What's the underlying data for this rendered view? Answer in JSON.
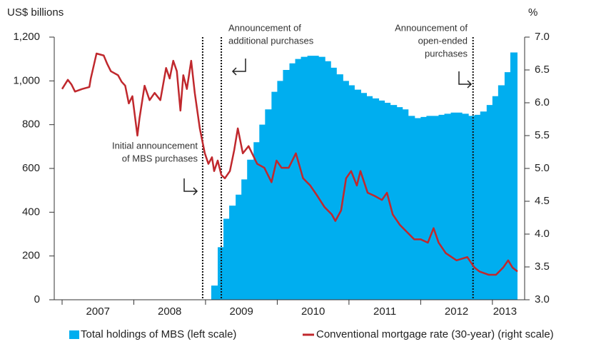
{
  "chart_data": {
    "type": "area-line",
    "y_label": "US$ billions",
    "y2_label": "%",
    "xlim": [
      2007,
      2013.35
    ],
    "xticks": [
      2007,
      2008,
      2009,
      2010,
      2011,
      2012,
      2013
    ],
    "ylim": [
      0,
      1200
    ],
    "yticks": [
      0,
      200,
      400,
      600,
      800,
      {
        "value": 1000,
        "label": "1,000"
      },
      {
        "value": 1200,
        "label": "1,200"
      }
    ],
    "y2lim": [
      3.0,
      7.0
    ],
    "y2ticks": [
      {
        "value": 3.0,
        "label": "3.0"
      },
      {
        "value": 3.5,
        "label": "3.5"
      },
      {
        "value": 4.0,
        "label": "4.0"
      },
      {
        "value": 4.5,
        "label": "4.5"
      },
      {
        "value": 5.0,
        "label": "5.0"
      },
      {
        "value": 5.5,
        "label": "5.5"
      },
      {
        "value": 6.0,
        "label": "6.0"
      },
      {
        "value": 6.5,
        "label": "6.5"
      },
      {
        "value": 7.0,
        "label": "7.0"
      }
    ],
    "legend": "bottom",
    "series": [
      {
        "name": "Total holdings of MBS (left scale)",
        "color": "#00aeef",
        "kind": "area",
        "x": [
          2008.83,
          2008.92,
          2009.0,
          2009.08,
          2009.17,
          2009.25,
          2009.33,
          2009.42,
          2009.5,
          2009.58,
          2009.67,
          2009.75,
          2009.83,
          2009.92,
          2010.0,
          2010.08,
          2010.17,
          2010.25,
          2010.33,
          2010.42,
          2010.5,
          2010.58,
          2010.67,
          2010.75,
          2010.83,
          2010.92,
          2011.0,
          2011.08,
          2011.17,
          2011.25,
          2011.33,
          2011.42,
          2011.5,
          2011.58,
          2011.67,
          2011.75,
          2011.83,
          2011.92,
          2012.0,
          2012.08,
          2012.17,
          2012.25,
          2012.33,
          2012.42,
          2012.5,
          2012.58,
          2012.67,
          2012.75,
          2012.83,
          2012.92,
          2013.0,
          2013.08,
          2013.17,
          2013.25
        ],
        "values": [
          0,
          0,
          0,
          65,
          240,
          370,
          430,
          480,
          550,
          640,
          720,
          800,
          870,
          950,
          1000,
          1050,
          1080,
          1100,
          1110,
          1115,
          1115,
          1110,
          1090,
          1060,
          1030,
          1000,
          980,
          960,
          945,
          930,
          920,
          910,
          900,
          890,
          880,
          870,
          840,
          830,
          835,
          840,
          840,
          845,
          850,
          855,
          855,
          850,
          840,
          845,
          860,
          890,
          930,
          980,
          1040,
          1130
        ]
      },
      {
        "name": "Conventional mortgage rate (30-year) (right scale)",
        "color": "#c0282d",
        "kind": "line",
        "axis": "y2",
        "x": [
          2007.0,
          2007.08,
          2007.13,
          2007.18,
          2007.28,
          2007.38,
          2007.4,
          2007.48,
          2007.58,
          2007.63,
          2007.68,
          2007.78,
          2007.83,
          2007.88,
          2007.93,
          2007.98,
          2008.05,
          2008.08,
          2008.15,
          2008.22,
          2008.29,
          2008.37,
          2008.45,
          2008.5,
          2008.55,
          2008.6,
          2008.65,
          2008.69,
          2008.74,
          2008.8,
          2008.85,
          2008.92,
          2008.99,
          2009.04,
          2009.09,
          2009.12,
          2009.17,
          2009.22,
          2009.27,
          2009.34,
          2009.4,
          2009.45,
          2009.52,
          2009.6,
          2009.72,
          2009.82,
          2009.92,
          2009.99,
          2010.06,
          2010.16,
          2010.26,
          2010.36,
          2010.46,
          2010.56,
          2010.66,
          2010.76,
          2010.81,
          2010.89,
          2010.96,
          2011.03,
          2011.11,
          2011.16,
          2011.26,
          2011.36,
          2011.46,
          2011.53,
          2011.61,
          2011.71,
          2011.81,
          2011.91,
          2012.0,
          2012.1,
          2012.18,
          2012.25,
          2012.35,
          2012.5,
          2012.65,
          2012.75,
          2012.82,
          2012.95,
          2013.05,
          2013.15,
          2013.22,
          2013.28,
          2013.35
        ],
        "values": [
          6.21,
          6.35,
          6.28,
          6.17,
          6.21,
          6.24,
          6.37,
          6.75,
          6.72,
          6.59,
          6.48,
          6.42,
          6.32,
          6.26,
          5.99,
          6.1,
          5.5,
          5.77,
          6.26,
          6.04,
          6.15,
          6.04,
          6.53,
          6.37,
          6.64,
          6.48,
          5.88,
          6.42,
          6.21,
          6.64,
          6.15,
          5.61,
          5.23,
          5.07,
          5.17,
          4.96,
          5.12,
          4.9,
          4.85,
          4.96,
          5.28,
          5.61,
          5.23,
          5.34,
          5.07,
          5.01,
          4.79,
          5.12,
          5.01,
          5.01,
          5.23,
          4.85,
          4.74,
          4.58,
          4.41,
          4.3,
          4.2,
          4.36,
          4.85,
          4.96,
          4.74,
          4.96,
          4.63,
          4.58,
          4.52,
          4.63,
          4.3,
          4.14,
          4.03,
          3.92,
          3.92,
          3.87,
          4.09,
          3.87,
          3.71,
          3.6,
          3.65,
          3.49,
          3.43,
          3.38,
          3.38,
          3.49,
          3.6,
          3.49,
          3.43
        ]
      }
    ],
    "annotations": [
      {
        "x": 2008.96,
        "text": [
          "Initial announcement",
          "of MBS purchases"
        ]
      },
      {
        "x": 2009.22,
        "text": [
          "Announcement of",
          "additional purchases"
        ]
      },
      {
        "x": 2012.73,
        "text": [
          "Announcement of",
          "open-ended",
          "purchases"
        ]
      }
    ]
  }
}
